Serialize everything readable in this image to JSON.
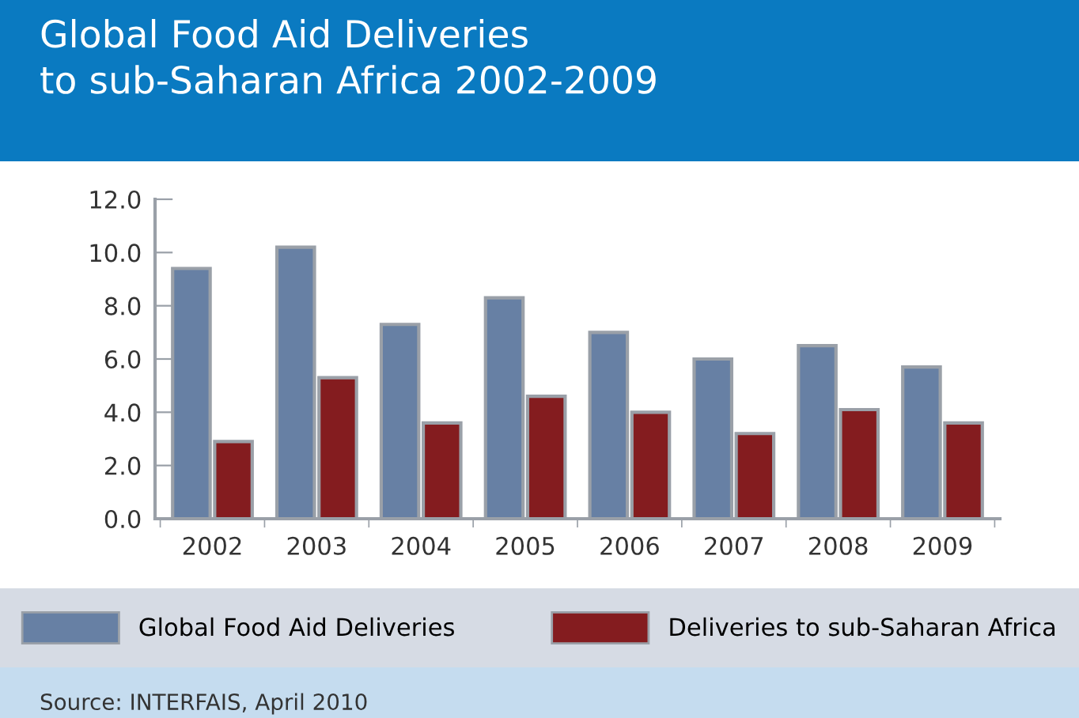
{
  "chart_data": {
    "type": "bar",
    "title": "Global Food Aid Deliveries\nto sub-Saharan Africa 2002-2009",
    "categories": [
      "2002",
      "2003",
      "2004",
      "2005",
      "2006",
      "2007",
      "2008",
      "2009"
    ],
    "series": [
      {
        "name": "Global Food Aid Deliveries",
        "color": "#6780a4",
        "values": [
          9.4,
          10.2,
          7.3,
          8.3,
          7.0,
          6.0,
          6.5,
          5.7
        ]
      },
      {
        "name": "Deliveries to sub-Saharan Africa",
        "color": "#841c1f",
        "values": [
          2.9,
          5.3,
          3.6,
          4.6,
          4.0,
          3.2,
          4.1,
          3.6
        ]
      }
    ],
    "ylim": [
      0,
      12
    ],
    "yticks": [
      {
        "value": 0,
        "label": "0.0"
      },
      {
        "value": 2,
        "label": "2.0"
      },
      {
        "value": 4,
        "label": "4.0"
      },
      {
        "value": 6,
        "label": "6.0"
      },
      {
        "value": 8,
        "label": "8.0"
      },
      {
        "value": 10,
        "label": "10.0"
      },
      {
        "value": 12,
        "label": "12.0"
      }
    ],
    "grid": false,
    "legend": "bottom",
    "annotations": [
      "Source: INTERFAIS, April 2010"
    ]
  }
}
